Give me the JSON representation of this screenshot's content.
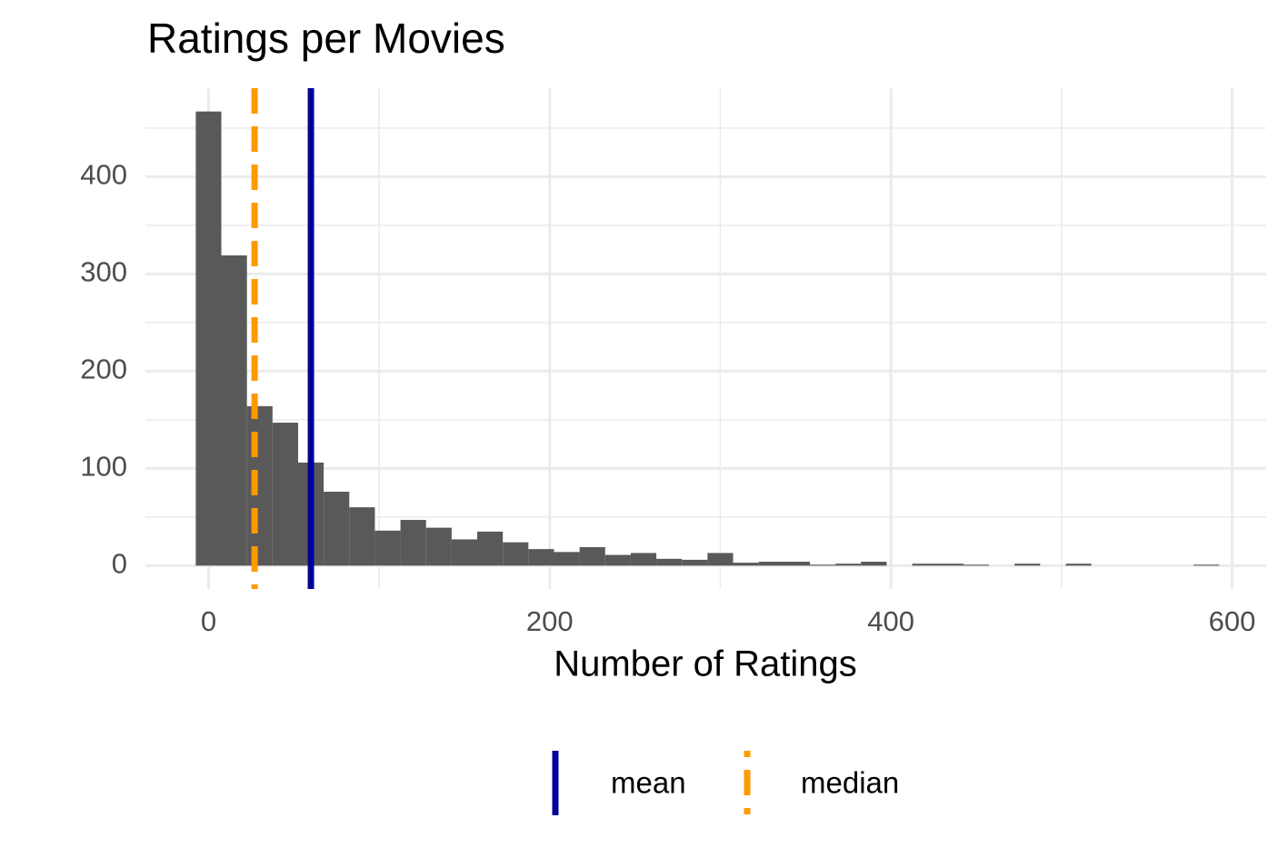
{
  "chart_data": {
    "type": "histogram",
    "title": "Ratings per Movies",
    "x_label": "Number of Ratings",
    "bins": [
      -7.5,
      7.5,
      22.5,
      37.5,
      52.5,
      67.5,
      82.5,
      97.5,
      112.5,
      127.5,
      142.5,
      157.5,
      172.5,
      187.5,
      202.5,
      217.5,
      232.5,
      247.5,
      262.5,
      277.5,
      292.5,
      307.5,
      322.5,
      337.5,
      352.5,
      367.5,
      382.5,
      397.5,
      412.5,
      427.5,
      442.5,
      457.5,
      472.5,
      487.5,
      502.5,
      517.5,
      532.5,
      547.5,
      562.5,
      577.5,
      592.5
    ],
    "counts": [
      467,
      319,
      164,
      147,
      106,
      76,
      60,
      36,
      47,
      39,
      27,
      35,
      24,
      17,
      14,
      19,
      11,
      13,
      7,
      6,
      13,
      3,
      4,
      4,
      1,
      2,
      4,
      0,
      2,
      2,
      1,
      0,
      2,
      0,
      2,
      0,
      0,
      0,
      0,
      1
    ],
    "color": "#595959",
    "lines": [
      {
        "name": "mean",
        "value": 60,
        "color": "#000099",
        "dashed": false
      },
      {
        "name": "median",
        "value": 27,
        "color": "#ff9900",
        "dashed": true
      }
    ],
    "xlim": [
      -37,
      620
    ],
    "ylim": [
      -24,
      491
    ],
    "xticks": [
      0,
      200,
      400,
      600
    ],
    "yticks": [
      0,
      100,
      200,
      300,
      400
    ],
    "grid": true,
    "legend": "bottom"
  }
}
